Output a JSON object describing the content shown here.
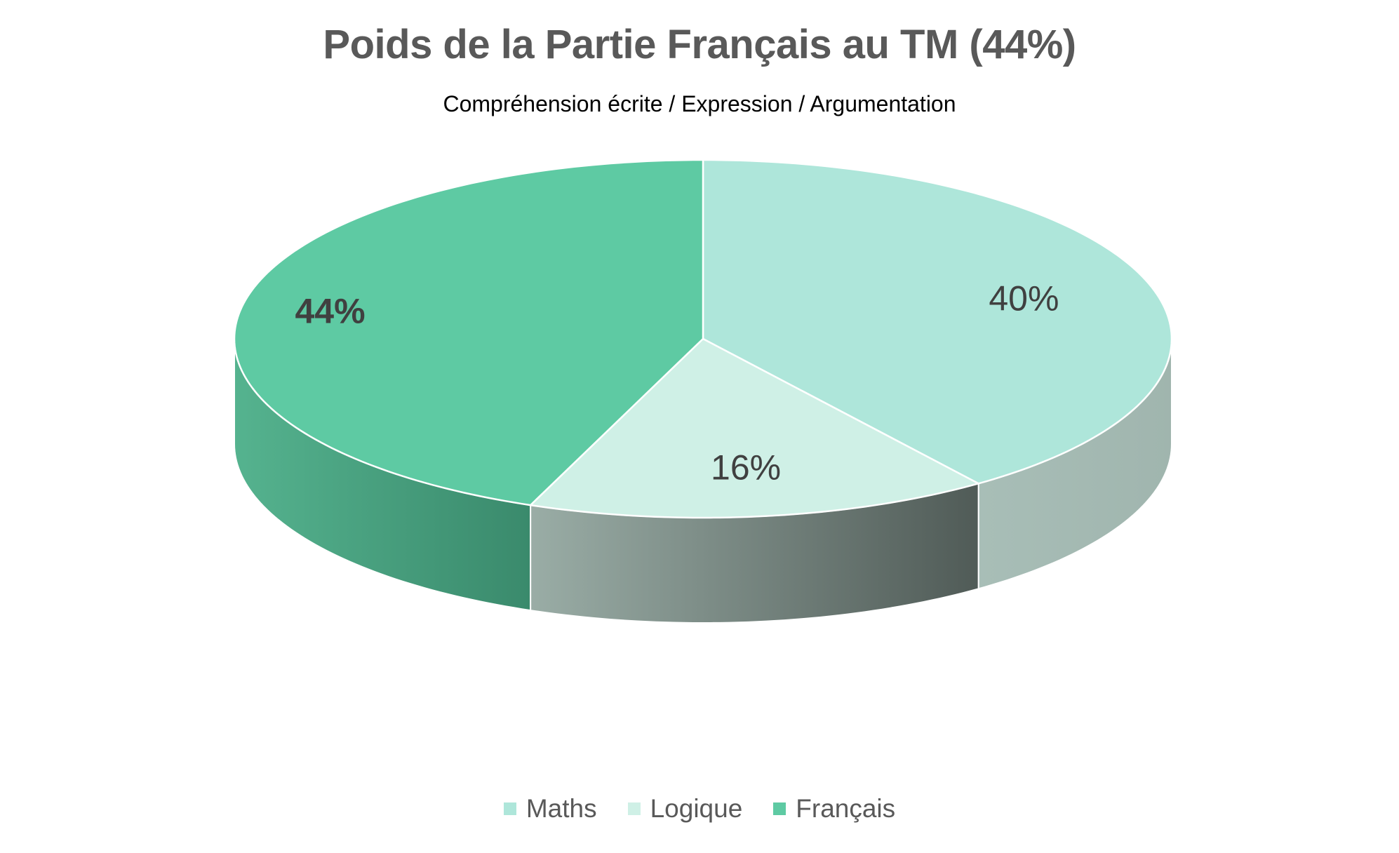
{
  "chart_data": {
    "type": "pie",
    "title": "Poids de la Partie Français au TM (44%)",
    "subtitle": "Compréhension écrite / Expression / Argumentation",
    "categories": [
      "Maths",
      "Logique",
      "Français"
    ],
    "values": [
      40,
      16,
      44
    ],
    "labels": [
      "40%",
      "16%",
      "44%"
    ],
    "colors": [
      "#aee6da",
      "#cff0e6",
      "#5ecaa3"
    ],
    "side_colors": [
      "#a4bbb4",
      "#6f857f",
      "#46a482"
    ],
    "legend_position": "bottom",
    "style": "3d"
  }
}
